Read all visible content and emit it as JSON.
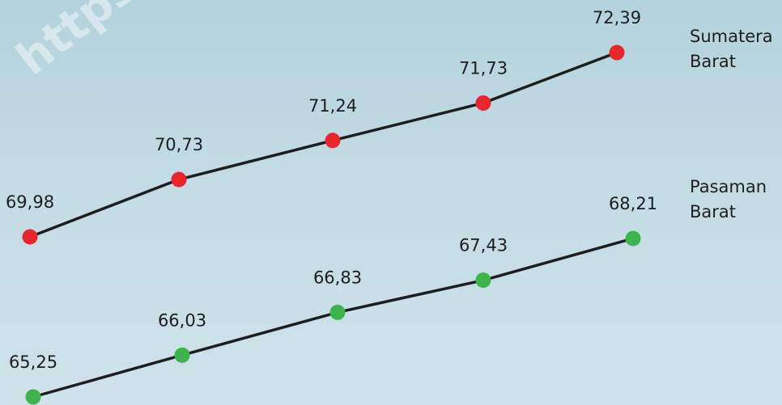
{
  "watermark": "https:",
  "chart_data": {
    "type": "line",
    "title": "",
    "xlabel": "",
    "ylabel": "",
    "categories": [
      "",
      "",
      "",
      "",
      ""
    ],
    "series": [
      {
        "name": "Sumatera Barat",
        "name_lines": [
          "Sumatera",
          "Barat"
        ],
        "color": "#e8262e",
        "values": [
          69.98,
          70.73,
          71.24,
          71.73,
          72.39
        ],
        "labels": [
          "69,98",
          "70,73",
          "71,24",
          "71,73",
          "72,39"
        ]
      },
      {
        "name": "Pasaman Barat",
        "name_lines": [
          "Pasaman",
          "Barat"
        ],
        "color": "#3cb44b",
        "values": [
          65.25,
          66.03,
          66.83,
          67.43,
          68.21
        ],
        "labels": [
          "65,25",
          "66,03",
          "66,83",
          "67,43",
          "68,21"
        ]
      }
    ],
    "line_color": "#1e1e1e",
    "grid": false,
    "legend": "right"
  }
}
